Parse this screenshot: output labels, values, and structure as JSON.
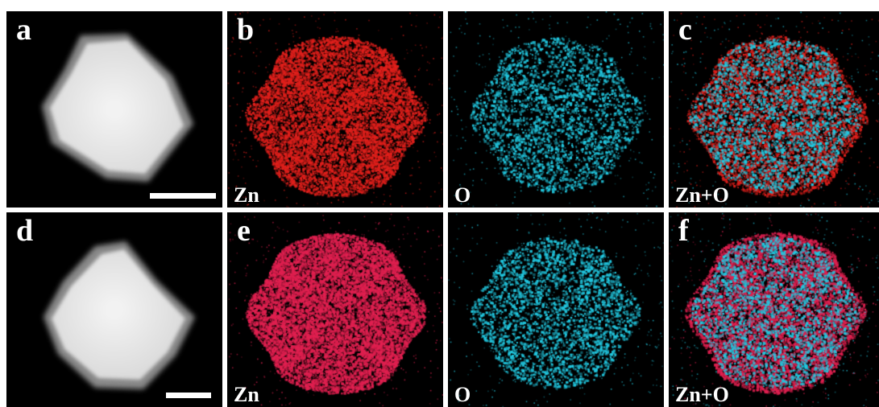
{
  "figure": {
    "rows": [
      {
        "panels": [
          {
            "id": "a",
            "label": "a",
            "kind": "sem",
            "element": ""
          },
          {
            "id": "b",
            "label": "b",
            "kind": "map",
            "element": "Zn",
            "color": "#e0201c"
          },
          {
            "id": "o1",
            "label": "",
            "kind": "map",
            "element": "O",
            "color": "#22c8e0"
          },
          {
            "id": "c",
            "label": "c",
            "kind": "overlay",
            "element": "Zn+O"
          }
        ]
      },
      {
        "panels": [
          {
            "id": "d",
            "label": "d",
            "kind": "sem",
            "element": ""
          },
          {
            "id": "e",
            "label": "e",
            "kind": "map",
            "element": "Zn",
            "color": "#e02050"
          },
          {
            "id": "o2",
            "label": "",
            "kind": "map",
            "element": "O",
            "color": "#22c8e0"
          },
          {
            "id": "f",
            "label": "f",
            "kind": "overlay",
            "element": "Zn+O"
          }
        ]
      }
    ],
    "colors": {
      "zn_top": "#e0201c",
      "zn_bottom": "#e02050",
      "oxygen": "#22c8e0",
      "background": "#000000",
      "divider": "#ffffff"
    }
  }
}
